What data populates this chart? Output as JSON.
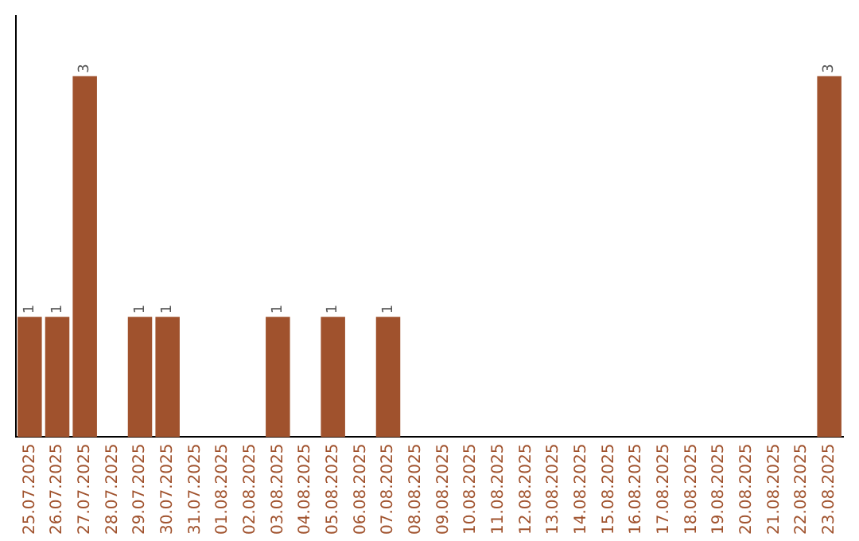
{
  "chart_data": {
    "type": "bar",
    "categories": [
      "25.07.2025",
      "26.07.2025",
      "27.07.2025",
      "28.07.2025",
      "29.07.2025",
      "30.07.2025",
      "31.07.2025",
      "01.08.2025",
      "02.08.2025",
      "03.08.2025",
      "04.08.2025",
      "05.08.2025",
      "06.08.2025",
      "07.08.2025",
      "08.08.2025",
      "09.08.2025",
      "10.08.2025",
      "11.08.2025",
      "12.08.2025",
      "13.08.2025",
      "14.08.2025",
      "15.08.2025",
      "16.08.2025",
      "17.08.2025",
      "18.08.2025",
      "19.08.2025",
      "20.08.2025",
      "21.08.2025",
      "22.08.2025",
      "23.08.2025"
    ],
    "values": [
      1,
      1,
      3,
      0,
      1,
      1,
      0,
      0,
      0,
      1,
      0,
      1,
      0,
      1,
      0,
      0,
      0,
      0,
      0,
      0,
      0,
      0,
      0,
      0,
      0,
      0,
      0,
      0,
      0,
      3
    ],
    "value_labels": [
      "1",
      "1",
      "3",
      null,
      "1",
      "1",
      null,
      null,
      null,
      "1",
      null,
      "1",
      null,
      "1",
      null,
      null,
      null,
      null,
      null,
      null,
      null,
      null,
      null,
      null,
      null,
      null,
      null,
      null,
      null,
      "3"
    ],
    "color": "#a0522d",
    "grid": false,
    "legend": false,
    "tick_labels": "x"
  }
}
